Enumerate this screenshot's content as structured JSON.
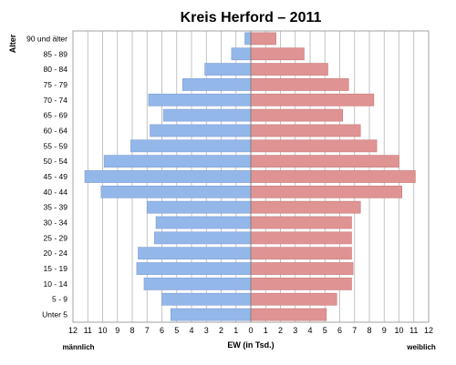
{
  "chart_data": {
    "type": "bar",
    "orientation": "horizontal-population-pyramid",
    "title": "Kreis Herford – 2011",
    "ylabel": "Alter",
    "xlabel": "EW (in Tsd.)",
    "left_label": "männlich",
    "right_label": "weiblich",
    "xlim": [
      -12,
      12
    ],
    "x_ticks": [
      "12",
      "11",
      "10",
      "9",
      "8",
      "7",
      "6",
      "5",
      "4",
      "3",
      "2",
      "1",
      "0",
      "1",
      "2",
      "3",
      "4",
      "5",
      "6",
      "7",
      "8",
      "9",
      "10",
      "11",
      "12"
    ],
    "grid": "vertical",
    "categories": [
      "90 und älter",
      "85 - 89",
      "80 - 84",
      "75 - 79",
      "70 - 74",
      "65 - 69",
      "60 - 64",
      "55 - 59",
      "50 - 54",
      "45 - 49",
      "40 - 44",
      "35 - 39",
      "30 - 34",
      "25 - 29",
      "20 - 24",
      "15 - 19",
      "10 - 14",
      "5 - 9",
      "Unter 5"
    ],
    "series": [
      {
        "name": "männlich",
        "color": "#94b7ea",
        "values": [
          0.4,
          1.3,
          3.1,
          4.6,
          6.9,
          5.9,
          6.8,
          8.1,
          9.9,
          11.2,
          10.1,
          7.0,
          6.4,
          6.5,
          7.6,
          7.7,
          7.2,
          6.0,
          5.4
        ]
      },
      {
        "name": "weiblich",
        "color": "#e09393",
        "values": [
          1.7,
          3.6,
          5.2,
          6.6,
          8.3,
          6.2,
          7.4,
          8.5,
          10.0,
          11.1,
          10.2,
          7.4,
          6.8,
          6.8,
          6.8,
          6.9,
          6.8,
          5.8,
          5.1
        ]
      }
    ]
  }
}
